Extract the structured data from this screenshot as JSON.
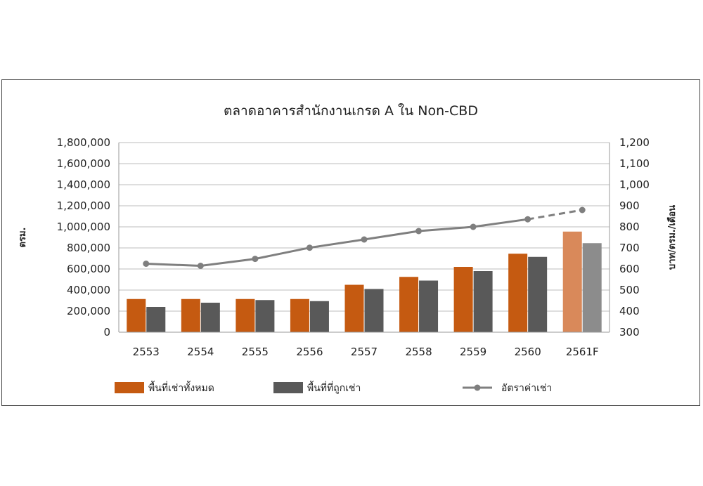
{
  "chart_data": {
    "type": "bar",
    "title": "ตลาดอาคารสำนักงานเกรด A ใน Non-CBD",
    "categories": [
      "2553",
      "2554",
      "2555",
      "2556",
      "2557",
      "2558",
      "2559",
      "2560",
      "2561F"
    ],
    "ylabel": "ตรม.",
    "y2label": "บาท/ตรม./เดือน",
    "ylim": [
      0,
      1800000
    ],
    "y2lim": [
      300,
      1200
    ],
    "yticks": [
      "0",
      "200,000",
      "400,000",
      "600,000",
      "800,000",
      "1,000,000",
      "1,200,000",
      "1,400,000",
      "1,600,000",
      "1,800,000"
    ],
    "y2ticks": [
      "300",
      "400",
      "500",
      "600",
      "700",
      "800",
      "900",
      "1,000",
      "1,100",
      "1,200"
    ],
    "grid": true,
    "legend_position": "bottom",
    "series": [
      {
        "name": "พื้นที่เช่าทั้งหมด",
        "type": "bar",
        "axis": "left",
        "color": "#C55A11",
        "forecast_color": "#D9895A",
        "values": [
          315000,
          315000,
          315000,
          315000,
          450000,
          525000,
          620000,
          745000,
          955000
        ]
      },
      {
        "name": "พื้นที่ที่ถูกเช่า",
        "type": "bar",
        "axis": "left",
        "color": "#595959",
        "forecast_color": "#8C8C8C",
        "values": [
          240000,
          280000,
          305000,
          295000,
          410000,
          490000,
          580000,
          715000,
          845000
        ]
      },
      {
        "name": "อัตราค่าเช่า",
        "type": "line",
        "axis": "right",
        "color": "#7F7F7F",
        "values": [
          625,
          615,
          648,
          701,
          740,
          780,
          800,
          836,
          880
        ],
        "forecast_from_index": 7
      }
    ]
  }
}
